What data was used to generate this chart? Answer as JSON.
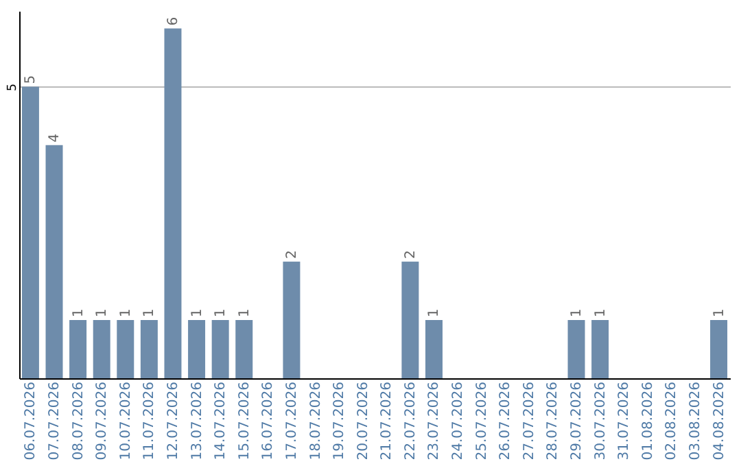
{
  "chart_data": {
    "type": "bar",
    "categories": [
      "06.07.2026",
      "07.07.2026",
      "08.07.2026",
      "09.07.2026",
      "10.07.2026",
      "11.07.2026",
      "12.07.2026",
      "13.07.2026",
      "14.07.2026",
      "15.07.2026",
      "16.07.2026",
      "17.07.2026",
      "18.07.2026",
      "19.07.2026",
      "20.07.2026",
      "21.07.2026",
      "22.07.2026",
      "23.07.2026",
      "24.07.2026",
      "25.07.2026",
      "26.07.2026",
      "27.07.2026",
      "28.07.2026",
      "29.07.2026",
      "30.07.2026",
      "31.07.2026",
      "01.08.2026",
      "02.08.2026",
      "03.08.2026",
      "04.08.2026"
    ],
    "values": [
      5,
      4,
      1,
      1,
      1,
      1,
      6,
      1,
      1,
      1,
      0,
      2,
      0,
      0,
      0,
      0,
      2,
      1,
      0,
      0,
      0,
      0,
      0,
      1,
      1,
      0,
      0,
      0,
      0,
      1
    ],
    "value_labels": [
      "5",
      "4",
      "1",
      "1",
      "1",
      "1",
      "6",
      "1",
      "1",
      "1",
      null,
      "2",
      null,
      null,
      null,
      null,
      "2",
      "1",
      null,
      null,
      null,
      null,
      null,
      "1",
      "1",
      null,
      null,
      null,
      null,
      "1"
    ],
    "color": "#6e8cab",
    "ylim": [
      0,
      6.3
    ],
    "yticks": [
      5
    ],
    "grid": "y"
  }
}
